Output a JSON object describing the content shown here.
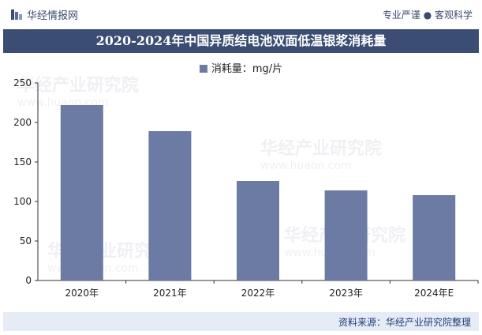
{
  "header": {
    "brand": "华经情报网",
    "tagline": "专业严谨 ● 客观科学"
  },
  "colors": {
    "bar": "#6b7ba4",
    "title_bg": "#3b4d73",
    "footer_bg": "#e6ecf5"
  },
  "watermark": {
    "name": "华经产业研究院",
    "url": "www.huaon.com"
  },
  "footer": {
    "source": "资料来源：华经产业研究院整理"
  },
  "chart_data": {
    "type": "bar",
    "title": "2020-2024年中国异质结电池双面低温银浆消耗量",
    "legend": "消耗量：mg/片",
    "categories": [
      "2020年",
      "2021年",
      "2022年",
      "2023年",
      "2024年E"
    ],
    "values": [
      222,
      189,
      126,
      114,
      108
    ],
    "ylim": [
      0,
      250
    ],
    "yticks": [
      0,
      50,
      100,
      150,
      200,
      250
    ],
    "grid": false
  }
}
